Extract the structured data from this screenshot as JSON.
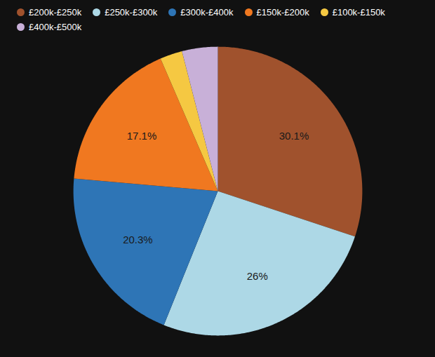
{
  "chart_data": {
    "type": "pie",
    "categories": [
      "£200k-£250k",
      "£250k-£300k",
      "£300k-£400k",
      "£150k-£200k",
      "£100k-£150k",
      "£400k-£500k"
    ],
    "values": [
      30.1,
      26.0,
      20.3,
      17.1,
      2.5,
      4.0
    ],
    "value_labels": [
      "30.1%",
      "26%",
      "20.3%",
      "17.1%",
      null,
      null
    ],
    "colors": [
      "#a0522d",
      "#add8e6",
      "#2e75b6",
      "#f07820",
      "#f5c842",
      "#c8b0d8"
    ],
    "data_labels": true,
    "legend": "top"
  }
}
